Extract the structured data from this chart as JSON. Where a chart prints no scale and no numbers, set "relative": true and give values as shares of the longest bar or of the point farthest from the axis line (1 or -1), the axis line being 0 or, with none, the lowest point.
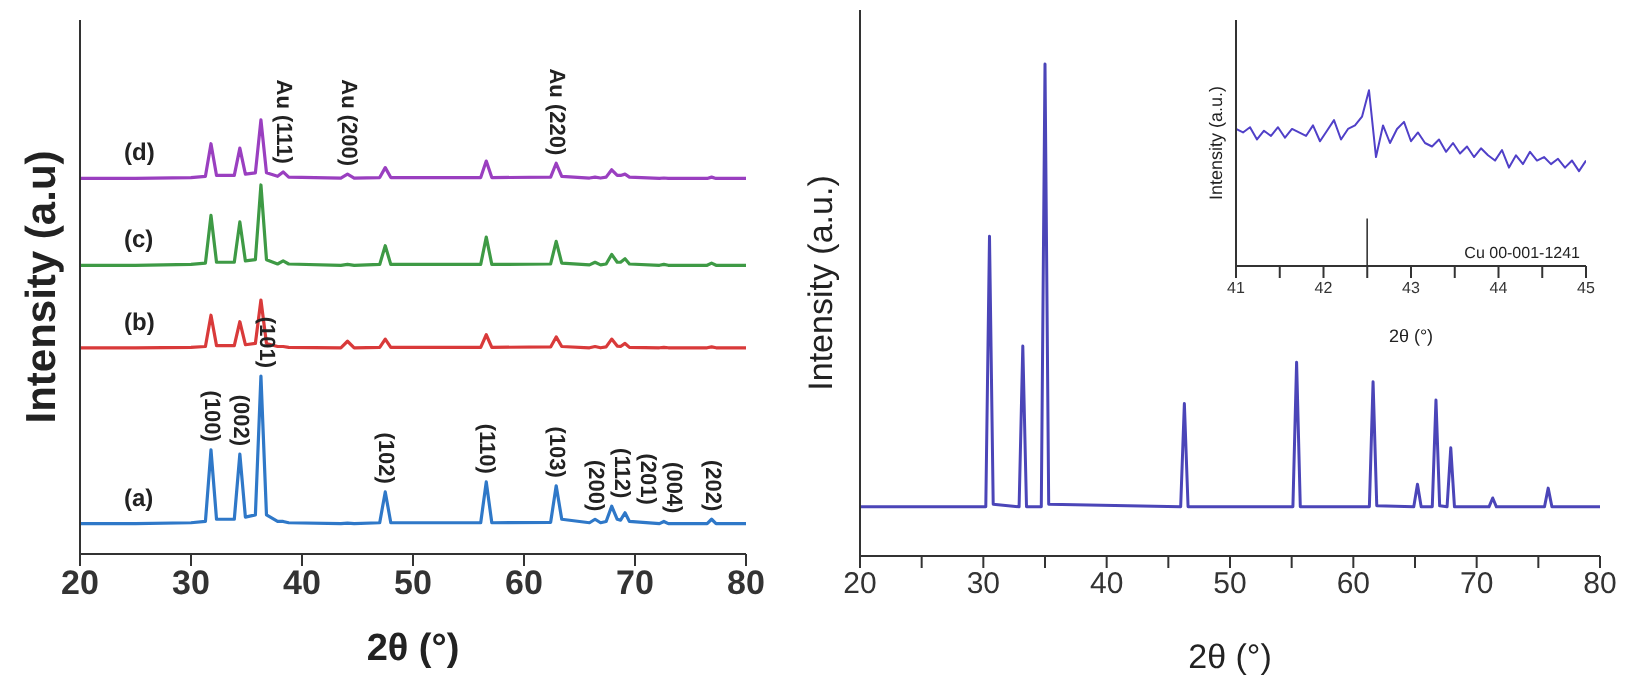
{
  "chart_data": [
    {
      "type": "line",
      "relative": true,
      "xlabel": "2θ (°)",
      "ylabel": "Intensity (a.u)",
      "xlim": [
        20,
        80
      ],
      "xticks": [
        20,
        30,
        40,
        50,
        60,
        70,
        80
      ],
      "x": [
        20,
        25,
        30,
        31.3,
        31.8,
        32.3,
        33.9,
        34.4,
        34.9,
        35.8,
        36.3,
        36.8,
        37.8,
        38.3,
        38.8,
        43.5,
        44.1,
        44.7,
        47.0,
        47.5,
        48.0,
        56.1,
        56.6,
        57.1,
        62.4,
        62.9,
        63.4,
        65.9,
        66.4,
        66.9,
        67.4,
        67.9,
        68.4,
        68.7,
        69.1,
        69.5,
        72.2,
        72.6,
        73.0,
        76.5,
        76.9,
        77.3,
        80
      ],
      "series": [
        {
          "name": "(a)",
          "color": "#2f78c8",
          "values": [
            0.07,
            0.07,
            0.072,
            0.075,
            0.24,
            0.08,
            0.08,
            0.23,
            0.085,
            0.09,
            0.41,
            0.09,
            0.075,
            0.075,
            0.072,
            0.07,
            0.071,
            0.07,
            0.072,
            0.143,
            0.072,
            0.072,
            0.166,
            0.072,
            0.073,
            0.157,
            0.08,
            0.072,
            0.08,
            0.072,
            0.075,
            0.11,
            0.08,
            0.078,
            0.095,
            0.075,
            0.07,
            0.075,
            0.07,
            0.07,
            0.08,
            0.07,
            0.07
          ]
        },
        {
          "name": "(b)",
          "color": "#d93a3a",
          "values": [
            0.475,
            0.475,
            0.476,
            0.478,
            0.55,
            0.48,
            0.48,
            0.535,
            0.482,
            0.485,
            0.585,
            0.485,
            0.478,
            0.478,
            0.476,
            0.475,
            0.49,
            0.475,
            0.476,
            0.495,
            0.476,
            0.476,
            0.505,
            0.476,
            0.477,
            0.5,
            0.478,
            0.475,
            0.478,
            0.475,
            0.477,
            0.495,
            0.479,
            0.478,
            0.485,
            0.476,
            0.475,
            0.476,
            0.475,
            0.475,
            0.477,
            0.475,
            0.475
          ]
        },
        {
          "name": "(c)",
          "color": "#3e9a45",
          "values": [
            0.665,
            0.665,
            0.667,
            0.67,
            0.78,
            0.672,
            0.672,
            0.765,
            0.675,
            0.678,
            0.85,
            0.678,
            0.668,
            0.675,
            0.668,
            0.665,
            0.667,
            0.665,
            0.667,
            0.71,
            0.667,
            0.667,
            0.73,
            0.667,
            0.668,
            0.72,
            0.67,
            0.666,
            0.672,
            0.666,
            0.668,
            0.69,
            0.672,
            0.672,
            0.68,
            0.668,
            0.665,
            0.667,
            0.665,
            0.665,
            0.67,
            0.665,
            0.665
          ]
        },
        {
          "name": "(d)",
          "color": "#9a3fc0",
          "values": [
            0.865,
            0.865,
            0.867,
            0.87,
            0.945,
            0.872,
            0.872,
            0.935,
            0.875,
            0.878,
            1.0,
            0.878,
            0.87,
            0.88,
            0.868,
            0.866,
            0.875,
            0.866,
            0.867,
            0.89,
            0.867,
            0.867,
            0.905,
            0.867,
            0.868,
            0.9,
            0.87,
            0.866,
            0.868,
            0.866,
            0.868,
            0.885,
            0.872,
            0.872,
            0.875,
            0.868,
            0.865,
            0.866,
            0.865,
            0.865,
            0.868,
            0.865,
            0.865
          ]
        }
      ],
      "annotations": [
        {
          "text": "(100)",
          "x": 31.8,
          "y": 0.24
        },
        {
          "text": "(002)",
          "x": 34.4,
          "y": 0.23
        },
        {
          "text": "(101)",
          "x": 36.3,
          "y": 0.41
        },
        {
          "text": "(102)",
          "x": 47.5,
          "y": 0.143
        },
        {
          "text": "(110)",
          "x": 56.6,
          "y": 0.166
        },
        {
          "text": "(103)",
          "x": 62.9,
          "y": 0.157
        },
        {
          "text": "(200)",
          "x": 66.4,
          "y": 0.08
        },
        {
          "text": "(112)",
          "x": 67.9,
          "y": 0.11
        },
        {
          "text": "(201)",
          "x": 69.1,
          "y": 0.095
        },
        {
          "text": "(004)",
          "x": 72.6,
          "y": 0.075
        },
        {
          "text": "(202)",
          "x": 76.9,
          "y": 0.08
        },
        {
          "text": "Au (111)",
          "x": 38.3,
          "y": 0.88
        },
        {
          "text": "Au (200)",
          "x": 44.1,
          "y": 0.875
        },
        {
          "text": "Au (220)",
          "x": 62.9,
          "y": 0.9
        }
      ]
    },
    {
      "type": "line",
      "relative": true,
      "xlabel": "2θ (°)",
      "ylabel": "Intensity (a.u.)",
      "xlim": [
        20,
        80
      ],
      "xticks": [
        20,
        {
          "value": 25,
          "label": null
        },
        30,
        {
          "value": 35,
          "label": null
        },
        40,
        {
          "value": 45,
          "label": null
        },
        50,
        {
          "value": 55,
          "label": null
        },
        60,
        {
          "value": 65,
          "label": null
        },
        70,
        {
          "value": 75,
          "label": null
        },
        80
      ],
      "x": [
        20,
        30.2,
        30.5,
        30.8,
        32.9,
        33.2,
        33.5,
        34.7,
        35.0,
        35.3,
        46.0,
        46.3,
        46.6,
        55.1,
        55.4,
        55.7,
        61.3,
        61.6,
        61.9,
        64.9,
        65.2,
        65.5,
        66.4,
        66.7,
        67.0,
        67.6,
        67.9,
        68.2,
        71.0,
        71.3,
        71.6,
        75.5,
        75.8,
        76.1,
        80
      ],
      "series": [
        {
          "color": "#4b45b8",
          "values": [
            0.1,
            0.1,
            0.65,
            0.105,
            0.1,
            0.427,
            0.1,
            0.1,
            1.0,
            0.105,
            0.1,
            0.31,
            0.1,
            0.1,
            0.394,
            0.1,
            0.1,
            0.354,
            0.102,
            0.1,
            0.146,
            0.1,
            0.1,
            0.317,
            0.102,
            0.1,
            0.22,
            0.1,
            0.1,
            0.118,
            0.1,
            0.1,
            0.138,
            0.1,
            0.1
          ]
        }
      ]
    },
    {
      "type": "line",
      "relative": true,
      "xlabel": "2θ (°)",
      "ylabel": "Intensity (a.u.)",
      "xlim": [
        41,
        45
      ],
      "xticks": [
        41,
        {
          "value": 41.5,
          "label": null
        },
        42,
        {
          "value": 42.5,
          "label": null
        },
        43,
        {
          "value": 43.5,
          "label": null
        },
        44,
        {
          "value": 44.5,
          "label": null
        },
        45
      ],
      "x": [
        41.0,
        41.08,
        41.16,
        41.24,
        41.32,
        41.4,
        41.48,
        41.56,
        41.64,
        41.72,
        41.8,
        41.88,
        41.96,
        42.04,
        42.12,
        42.2,
        42.28,
        42.36,
        42.44,
        42.52,
        42.6,
        42.68,
        42.76,
        42.84,
        42.92,
        43.0,
        43.08,
        43.16,
        43.24,
        43.32,
        43.4,
        43.48,
        43.56,
        43.64,
        43.72,
        43.8,
        43.88,
        43.96,
        44.04,
        44.12,
        44.2,
        44.28,
        44.36,
        44.44,
        44.52,
        44.6,
        44.68,
        44.76,
        44.84,
        44.92,
        45.0
      ],
      "series": [
        {
          "color": "#5040c8",
          "values": [
            0.78,
            0.76,
            0.79,
            0.72,
            0.77,
            0.74,
            0.79,
            0.73,
            0.78,
            0.76,
            0.74,
            0.8,
            0.71,
            0.77,
            0.83,
            0.72,
            0.78,
            0.8,
            0.85,
            1.0,
            0.62,
            0.8,
            0.7,
            0.78,
            0.82,
            0.71,
            0.76,
            0.7,
            0.68,
            0.72,
            0.65,
            0.7,
            0.64,
            0.68,
            0.62,
            0.67,
            0.63,
            0.6,
            0.66,
            0.56,
            0.63,
            0.58,
            0.65,
            0.6,
            0.62,
            0.58,
            0.61,
            0.56,
            0.6,
            0.54,
            0.6
          ]
        },
        {
          "type": "bar",
          "color": "#333333",
          "x": [
            42.5
          ],
          "values": [
            0.27
          ]
        }
      ],
      "annotations": [
        "Cu 00-001-1241"
      ]
    }
  ]
}
